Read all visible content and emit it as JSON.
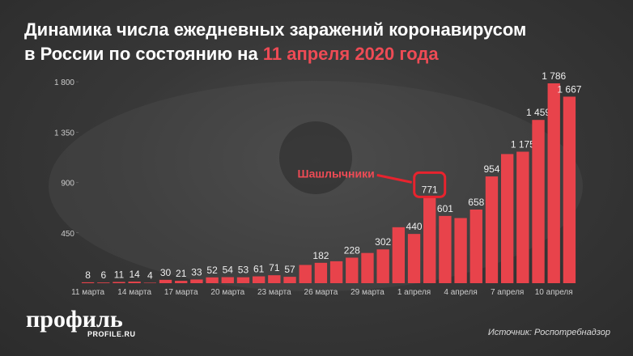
{
  "logo": "профиль",
  "logo_site": "PROFILE.RU",
  "chart_data": {
    "type": "bar",
    "title": [
      "Динамика числа ежедневных заражений коронавирусом",
      "в России по состоянию на"
    ],
    "title_highlight": "11 апреля 2020 года",
    "source": "Источник: Роспотребнадзор",
    "annotation": "Шашлычники",
    "color": "#e8434b",
    "categories": [
      "11 марта",
      null,
      null,
      "14 марта",
      null,
      null,
      "17 марта",
      null,
      null,
      "20 марта",
      null,
      null,
      "23 марта",
      null,
      null,
      "26 марта",
      null,
      null,
      "29 марта",
      null,
      null,
      "1 апреля",
      null,
      null,
      "4 апреля",
      null,
      null,
      "7 апреля",
      null,
      null,
      "10 апреля",
      null
    ],
    "values": [
      8,
      6,
      11,
      14,
      4,
      30,
      21,
      33,
      52,
      54,
      53,
      61,
      71,
      57,
      163,
      182,
      196,
      228,
      270,
      302,
      500,
      440,
      771,
      601,
      582,
      658,
      954,
      1154,
      1175,
      1459,
      1786,
      1667
    ],
    "value_labels": [
      "8",
      "6",
      "11",
      "14",
      "4",
      "30",
      "21",
      "33",
      "52",
      "54",
      "53",
      "61",
      "71",
      "57",
      null,
      "182",
      null,
      "228",
      null,
      "302",
      null,
      "440",
      "771",
      "601",
      null,
      "658",
      "954",
      null,
      "1 175",
      "1 459",
      "1 786",
      "1 667"
    ],
    "ylim": [
      0,
      1880
    ],
    "yticks": [
      450,
      900,
      {
        "value": 1350,
        "label": "1 350"
      },
      {
        "value": 1800,
        "label": "1 800"
      }
    ]
  }
}
